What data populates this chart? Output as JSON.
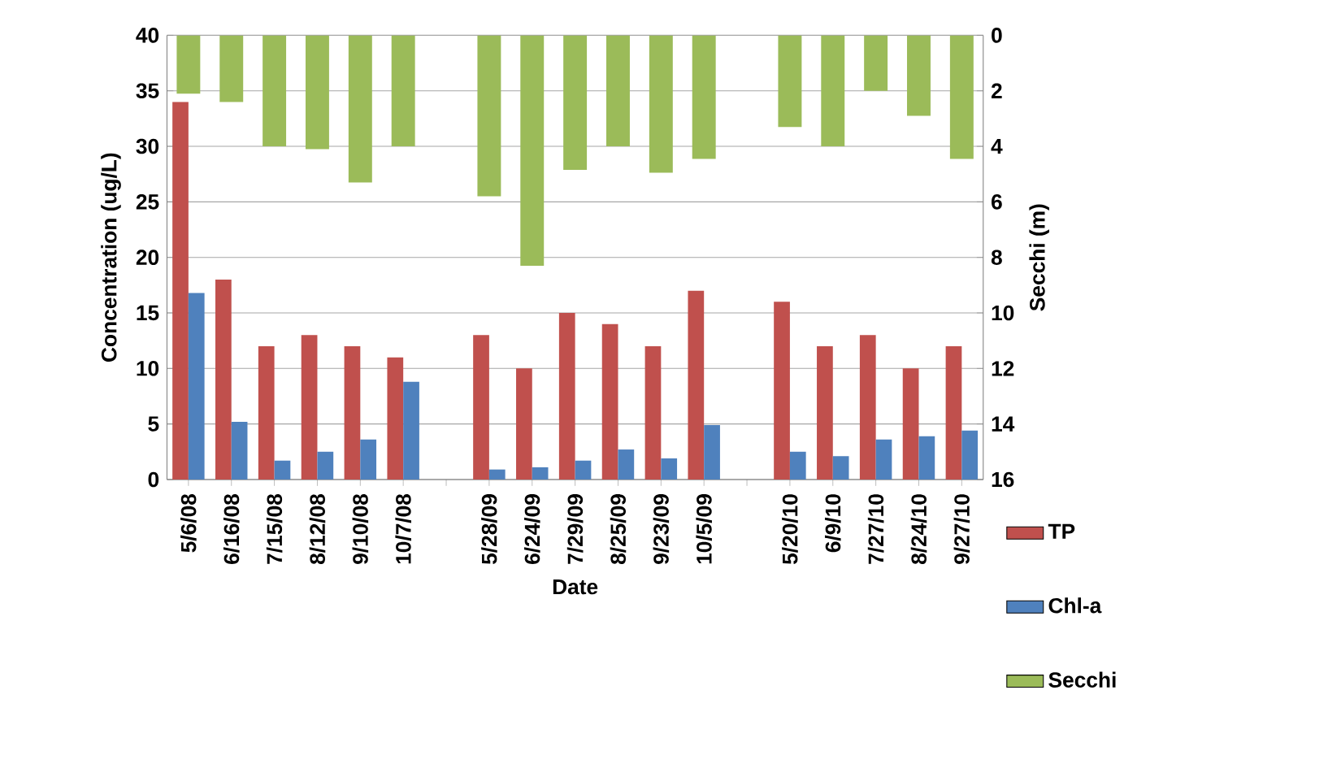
{
  "chart_data": {
    "type": "bar",
    "xlabel": "Date",
    "ylabel": "Concentration (ug/L)",
    "y2label": "Secchi (m)",
    "categories": [
      "5/6/08",
      "6/16/08",
      "7/15/08",
      "8/12/08",
      "9/10/08",
      "10/7/08",
      null,
      "5/28/09",
      "6/24/09",
      "7/29/09",
      "8/25/09",
      "9/23/09",
      "10/5/09",
      null,
      "5/20/10",
      "6/9/10",
      "7/27/10",
      "8/24/10",
      "9/27/10"
    ],
    "series": [
      {
        "name": "TP",
        "color": "#c0504d",
        "values": [
          34,
          18,
          12,
          13,
          12,
          11,
          null,
          13,
          10,
          15,
          14,
          12,
          17,
          null,
          16,
          12,
          13,
          10,
          12
        ]
      },
      {
        "name": "Chl-a",
        "color": "#4f81bd",
        "values": [
          16.8,
          5.2,
          1.7,
          2.5,
          3.6,
          8.8,
          null,
          0.9,
          1.1,
          1.7,
          2.7,
          1.9,
          4.9,
          null,
          2.5,
          2.1,
          3.6,
          3.9,
          4.4
        ]
      },
      {
        "name": "Secchi",
        "color": "#9bbb59",
        "axis": "y2",
        "values": [
          2.1,
          2.4,
          4.0,
          4.1,
          5.3,
          4.0,
          null,
          5.8,
          8.3,
          4.85,
          4.0,
          4.95,
          4.45,
          null,
          3.3,
          4.0,
          2.0,
          2.9,
          4.45
        ]
      }
    ],
    "ylim": [
      0,
      40
    ],
    "yticks": [
      0,
      5,
      10,
      15,
      20,
      25,
      30,
      35,
      40
    ],
    "y2lim": [
      16,
      0
    ],
    "y2ticks": [
      0,
      2,
      4,
      6,
      8,
      10,
      12,
      14,
      16
    ],
    "grid": "y",
    "legend": "bottom right"
  }
}
